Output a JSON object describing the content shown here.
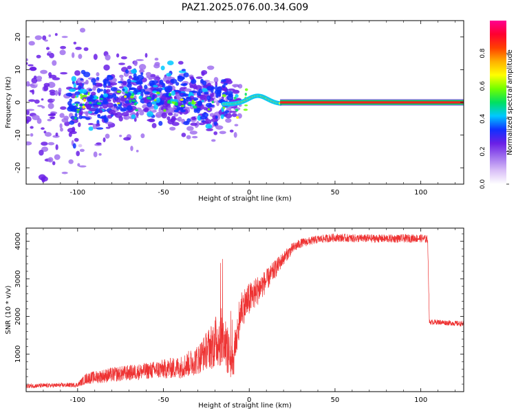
{
  "figure": {
    "title": "PAZ1.2025.076.00.34.G09"
  },
  "chart_data": [
    {
      "type": "heatmap",
      "xlabel": "Height of straight line (km)",
      "ylabel": "Frequency (Hz)",
      "xlim": [
        -130,
        125
      ],
      "ylim": [
        -25,
        25
      ],
      "xticks": [
        -100,
        -50,
        0,
        50,
        100
      ],
      "yticks": [
        -20,
        -10,
        0,
        10,
        20
      ],
      "grid": false,
      "colorbar": {
        "label": "Normalized spectral amplitude",
        "range": [
          0,
          1
        ],
        "ticks": [
          "0.0",
          "0.2",
          "0.4",
          "0.6",
          "0.8"
        ],
        "colormap": [
          "#ffffff",
          "#d9bff7",
          "#a070ee",
          "#6a1fe6",
          "#1030ff",
          "#00c8ff",
          "#00e060",
          "#70ff00",
          "#ffff00",
          "#ffb000",
          "#ff4000",
          "#ff0030",
          "#ff0090"
        ]
      },
      "features": {
        "carrier_line": {
          "x_start": 18,
          "x_end": 125,
          "frequency": 0,
          "amplitude": 1.0,
          "colors": [
            "#ff2020",
            "#00c060"
          ]
        },
        "transition_wave": {
          "x_start": -15,
          "x_end": 18,
          "peak_frequency": 2.5,
          "peak_at_x": 5
        },
        "noise_region": {
          "x_start": -130,
          "x_end": -15,
          "frequency_spread": 20
        }
      }
    },
    {
      "type": "line",
      "xlabel": "Height of straight line (km)",
      "ylabel": "SNR (10 * v/v)",
      "xlim": [
        -130,
        125
      ],
      "ylim": [
        0,
        4350
      ],
      "xticks": [
        -100,
        -50,
        0,
        50,
        100
      ],
      "yticks": [
        1000,
        2000,
        3000,
        4000
      ],
      "grid": false,
      "series": [
        {
          "color": "#ee3333",
          "x": [
            -130,
            -100,
            -95,
            -80,
            -60,
            -40,
            -30,
            -25,
            -20,
            -15,
            -10,
            -5,
            0,
            5,
            10,
            15,
            20,
            25,
            30,
            40,
            50,
            60,
            80,
            100,
            104,
            105,
            110,
            125
          ],
          "y": [
            150,
            180,
            350,
            450,
            550,
            650,
            850,
            1100,
            1300,
            1500,
            600,
            2200,
            2450,
            2700,
            2950,
            3250,
            3550,
            3800,
            3950,
            4050,
            4100,
            4080,
            4070,
            4080,
            4050,
            1850,
            1850,
            1800
          ],
          "noise": [
            60,
            60,
            150,
            200,
            220,
            300,
            400,
            500,
            700,
            800,
            500,
            500,
            450,
            400,
            300,
            250,
            180,
            150,
            120,
            110,
            110,
            110,
            110,
            110,
            110,
            70,
            70,
            70
          ]
        }
      ]
    }
  ]
}
